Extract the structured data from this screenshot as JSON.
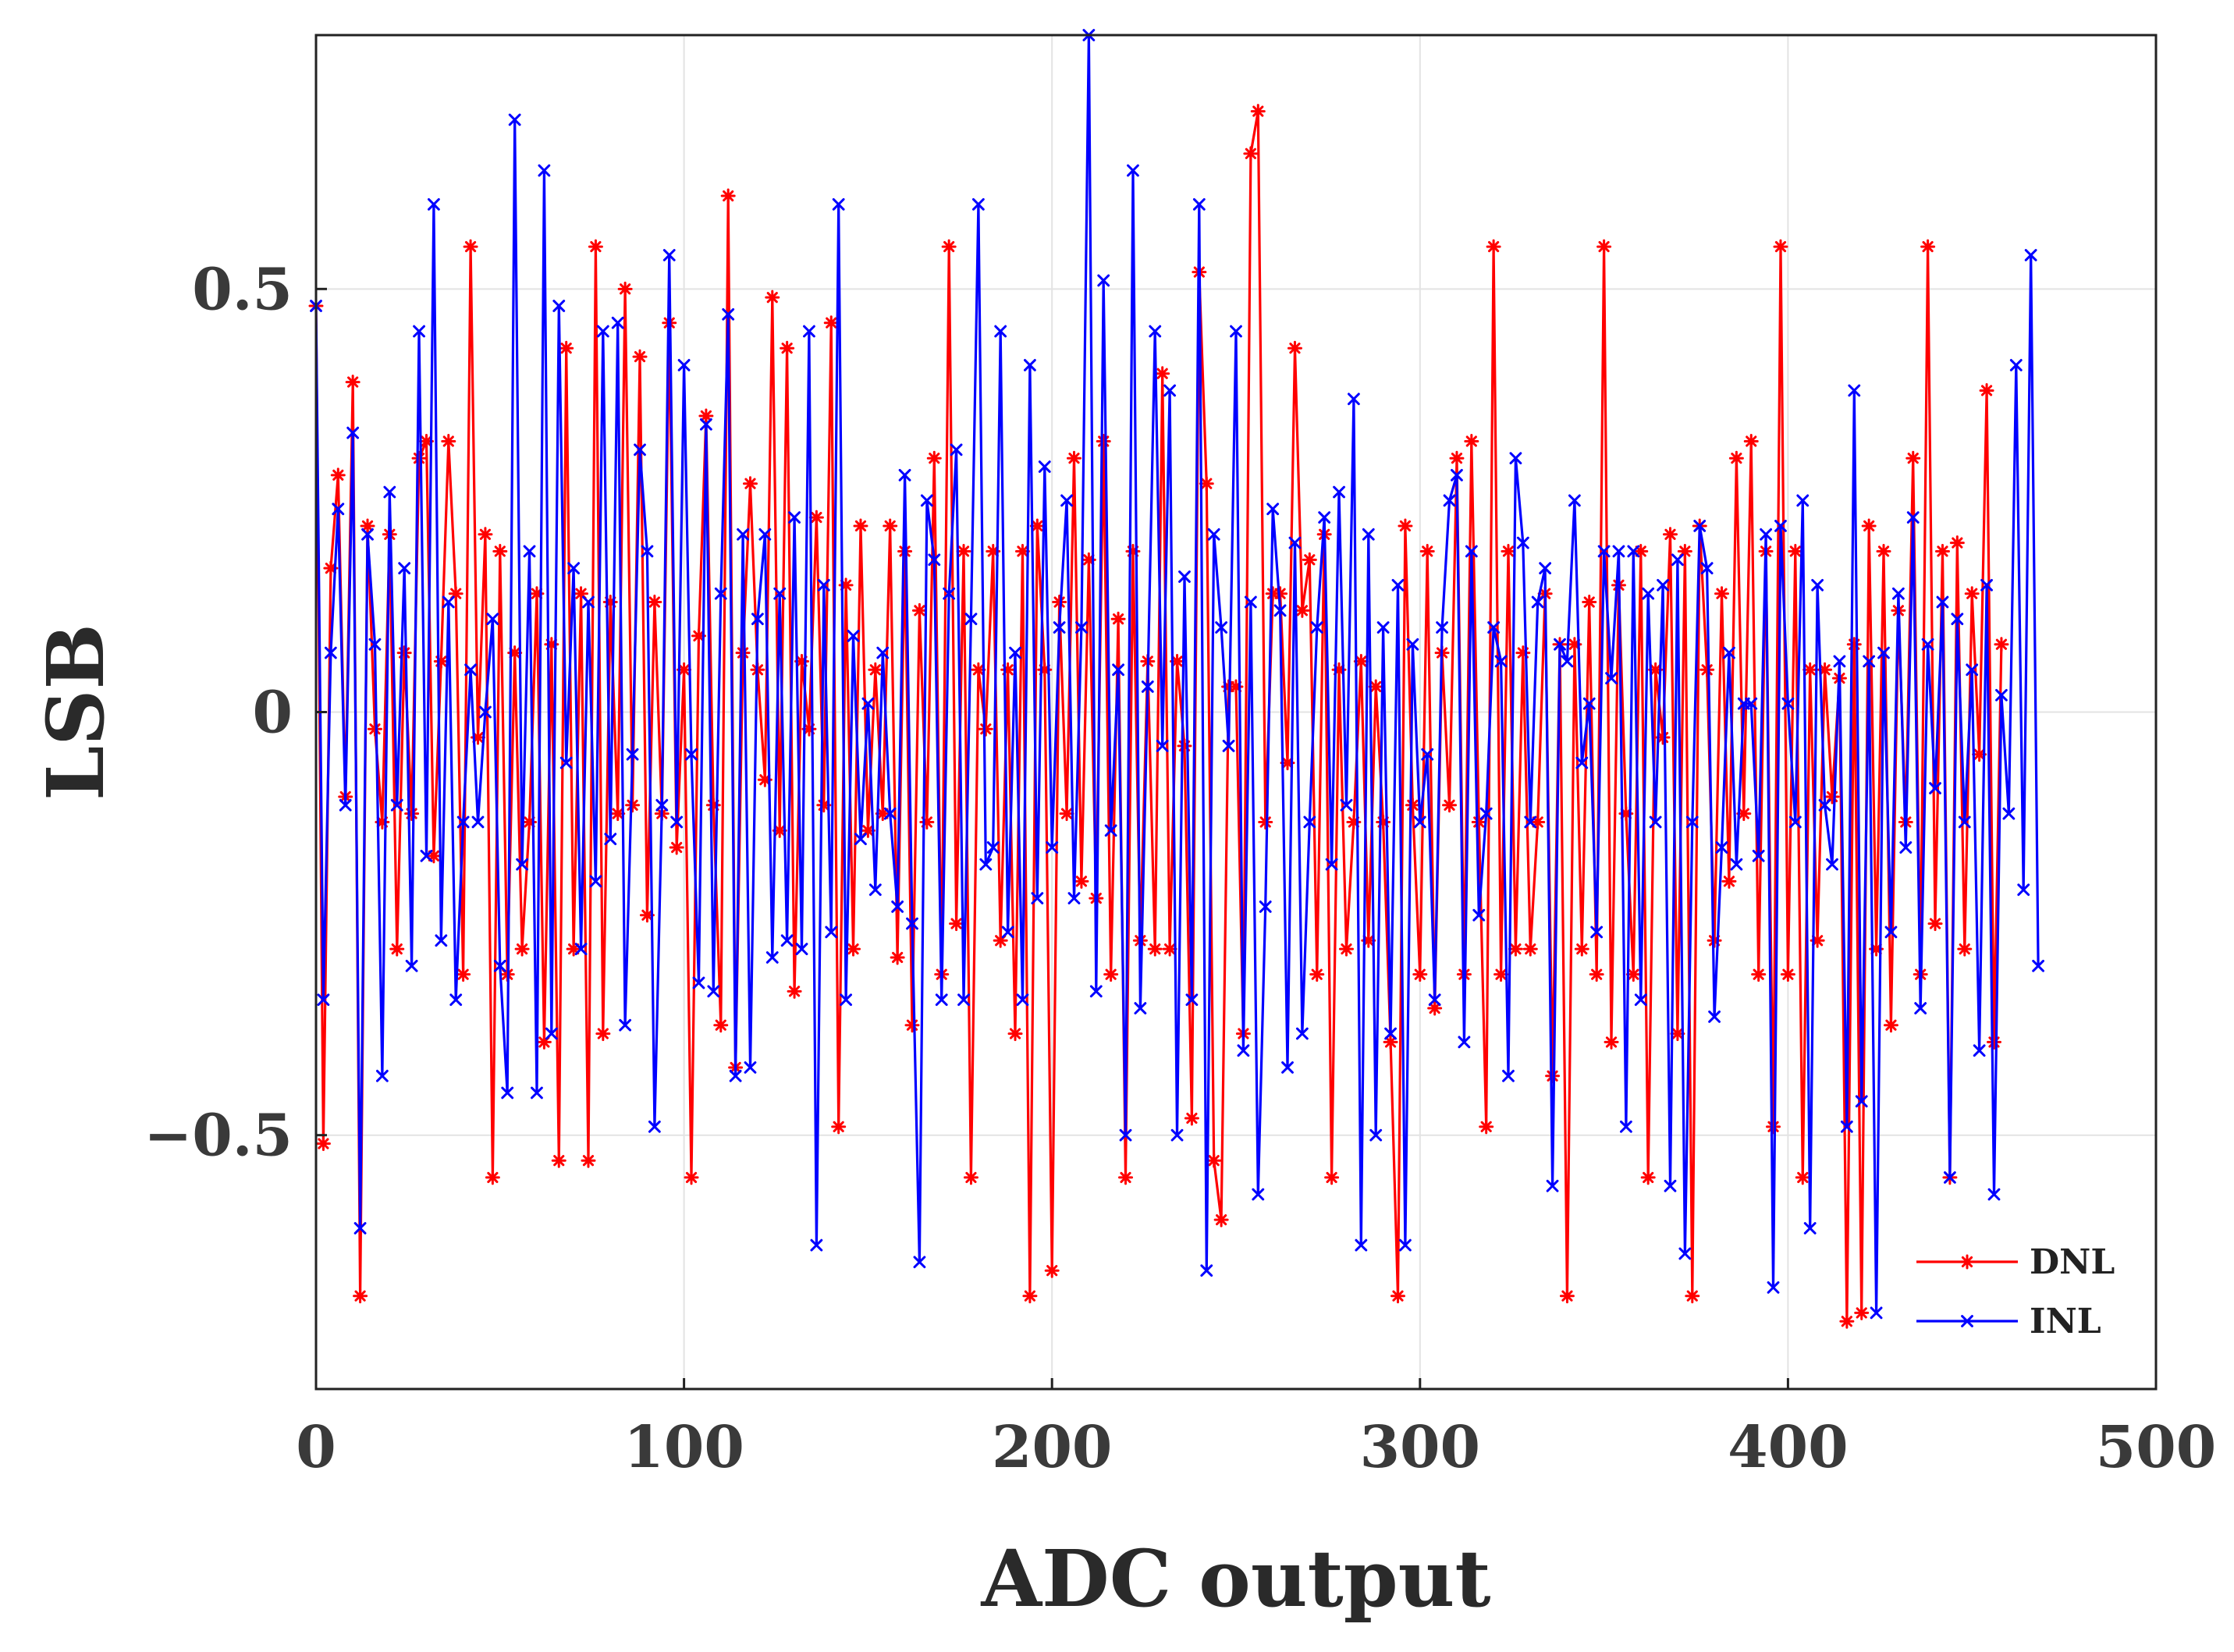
{
  "chart_data": {
    "type": "line",
    "title": "",
    "xlabel": "ADC output",
    "ylabel": "LSB",
    "xlim": [
      0,
      500
    ],
    "ylim": [
      -0.8,
      0.8
    ],
    "xticks": [
      0,
      100,
      200,
      300,
      400,
      500
    ],
    "xtick_labels": [
      "0",
      "100",
      "200",
      "300",
      "400",
      "500"
    ],
    "yticks": [
      -0.5,
      0,
      0.5
    ],
    "ytick_labels": [
      "−0.5",
      "0",
      "0.5"
    ],
    "grid": true,
    "legend_position": "bottom-right",
    "x_start": 0,
    "x_step": 2,
    "series": [
      {
        "name": "DNL",
        "color": "#ff0000",
        "marker": "asterisk",
        "values": [
          0.48,
          -0.51,
          0.17,
          0.28,
          -0.1,
          0.39,
          -0.69,
          0.22,
          -0.02,
          -0.13,
          0.21,
          -0.28,
          0.07,
          -0.12,
          0.3,
          0.32,
          -0.17,
          0.06,
          0.32,
          0.14,
          -0.31,
          0.55,
          -0.03,
          0.21,
          -0.55,
          0.19,
          -0.31,
          0.07,
          -0.28,
          -0.13,
          0.14,
          -0.39,
          0.08,
          -0.53,
          0.43,
          -0.28,
          0.14,
          -0.53,
          0.55,
          -0.38,
          0.13,
          -0.12,
          0.5,
          -0.11,
          0.42,
          -0.24,
          0.13,
          -0.12,
          0.46,
          -0.16,
          0.05,
          -0.55,
          0.09,
          0.35,
          -0.11,
          -0.37,
          0.61,
          -0.42,
          0.07,
          0.27,
          0.05,
          -0.08,
          0.49,
          -0.14,
          0.43,
          -0.33,
          0.06,
          -0.02,
          0.23,
          -0.11,
          0.46,
          -0.49,
          0.15,
          -0.28,
          0.22,
          -0.14,
          0.05,
          -0.12,
          0.22,
          -0.29,
          0.19,
          -0.37,
          0.12,
          -0.13,
          0.3,
          -0.31,
          0.55,
          -0.25,
          0.19,
          -0.55,
          0.05,
          -0.02,
          0.19,
          -0.27,
          0.05,
          -0.38,
          0.19,
          -0.69,
          0.22,
          0.05,
          -0.66,
          0.13,
          -0.12,
          0.3,
          -0.2,
          0.18,
          -0.22,
          0.32,
          -0.31,
          0.11,
          -0.55,
          0.19,
          -0.27,
          0.06,
          -0.28,
          0.4,
          -0.28,
          0.06,
          -0.04,
          -0.48,
          0.52,
          0.27,
          -0.53,
          -0.6,
          0.03,
          0.03,
          -0.38,
          0.66,
          0.71,
          -0.13,
          0.14,
          0.14,
          -0.06,
          0.43,
          0.12,
          0.18,
          -0.31,
          0.21,
          -0.55,
          0.05,
          -0.28,
          -0.13,
          0.06,
          -0.27,
          0.03,
          -0.13,
          -0.39,
          -0.69,
          0.22,
          -0.11,
          -0.31,
          0.19,
          -0.35,
          0.07,
          -0.11,
          0.3,
          -0.31,
          0.32,
          -0.13,
          -0.49,
          0.55,
          -0.31,
          0.19,
          -0.28,
          0.07,
          -0.28,
          -0.13,
          0.14,
          -0.43,
          0.08,
          -0.69,
          0.08,
          -0.28,
          0.13,
          -0.31,
          0.55,
          -0.39,
          0.15,
          -0.12,
          -0.31,
          0.19,
          -0.55,
          0.05,
          -0.03,
          0.21,
          -0.38,
          0.19,
          -0.69,
          0.22,
          0.05,
          -0.27,
          0.14,
          -0.2,
          0.3,
          -0.12,
          0.32,
          -0.31,
          0.19,
          -0.49,
          0.55,
          -0.31,
          0.19,
          -0.55,
          0.05,
          -0.27,
          0.05,
          -0.1,
          0.04,
          -0.72,
          0.08,
          -0.71,
          0.22,
          -0.28,
          0.19,
          -0.37,
          0.12,
          -0.13,
          0.3,
          -0.31,
          0.55,
          -0.25,
          0.19,
          -0.55,
          0.2,
          -0.28,
          0.14,
          -0.05,
          0.38,
          -0.39,
          0.08
        ]
      },
      {
        "name": "INL",
        "color": "#0000ff",
        "marker": "x",
        "values": [
          0.48,
          -0.34,
          0.07,
          0.24,
          -0.11,
          0.33,
          -0.61,
          0.21,
          0.08,
          -0.43,
          0.26,
          -0.11,
          0.17,
          -0.3,
          0.45,
          -0.17,
          0.6,
          -0.27,
          0.13,
          -0.34,
          -0.13,
          0.05,
          -0.13,
          0.0,
          0.11,
          -0.3,
          -0.45,
          0.7,
          -0.18,
          0.19,
          -0.45,
          0.64,
          -0.38,
          0.48,
          -0.06,
          0.17,
          -0.28,
          0.13,
          -0.2,
          0.45,
          -0.15,
          0.46,
          -0.37,
          -0.05,
          0.31,
          0.19,
          -0.49,
          -0.11,
          0.54,
          -0.13,
          0.41,
          -0.05,
          -0.32,
          0.34,
          -0.33,
          0.14,
          0.47,
          -0.43,
          0.21,
          -0.42,
          0.11,
          0.21,
          -0.29,
          0.14,
          -0.27,
          0.23,
          -0.28,
          0.45,
          -0.63,
          0.15,
          -0.26,
          0.6,
          -0.34,
          0.09,
          -0.15,
          0.01,
          -0.21,
          0.07,
          -0.12,
          -0.23,
          0.28,
          -0.25,
          -0.65,
          0.25,
          0.18,
          -0.34,
          0.14,
          0.31,
          -0.34,
          0.11,
          0.6,
          -0.18,
          -0.16,
          0.45,
          -0.26,
          0.07,
          -0.34,
          0.41,
          -0.22,
          0.29,
          -0.16,
          0.1,
          0.25,
          -0.22,
          0.1,
          0.8,
          -0.33,
          0.51,
          -0.14,
          0.05,
          -0.5,
          0.64,
          -0.35,
          0.03,
          0.45,
          -0.04,
          0.38,
          -0.5,
          0.16,
          -0.34,
          0.6,
          -0.66,
          0.21,
          0.1,
          -0.04,
          0.45,
          -0.4,
          0.13,
          -0.57,
          -0.23,
          0.24,
          0.12,
          -0.42,
          0.2,
          -0.38,
          -0.13,
          0.1,
          0.23,
          -0.18,
          0.26,
          -0.11,
          0.37,
          -0.63,
          0.21,
          -0.5,
          0.1,
          -0.38,
          0.15,
          -0.63,
          0.08,
          -0.13,
          -0.05,
          -0.34,
          0.1,
          0.25,
          0.28,
          -0.39,
          0.19,
          -0.24,
          -0.12,
          0.1,
          0.06,
          -0.43,
          0.3,
          0.2,
          -0.13,
          0.13,
          0.17,
          -0.56,
          0.08,
          0.06,
          0.25,
          -0.06,
          0.01,
          -0.26,
          0.19,
          0.04,
          0.19,
          -0.49,
          0.19,
          -0.34,
          0.14,
          -0.13,
          0.15,
          -0.56,
          0.18,
          -0.64,
          -0.13,
          0.22,
          0.17,
          -0.36,
          -0.16,
          0.07,
          -0.18,
          0.01,
          0.01,
          -0.17,
          0.21,
          -0.68,
          0.22,
          0.01,
          -0.13,
          0.25,
          -0.61,
          0.15,
          -0.11,
          -0.18,
          0.06,
          -0.49,
          0.38,
          -0.46,
          0.06,
          -0.71,
          0.07,
          -0.26,
          0.14,
          -0.16,
          0.23,
          -0.35,
          0.08,
          -0.09,
          0.13,
          -0.55,
          0.11,
          -0.13,
          0.05,
          -0.4,
          0.15,
          -0.57,
          0.02,
          -0.12,
          0.41,
          -0.21,
          0.54,
          -0.3
        ]
      }
    ]
  }
}
